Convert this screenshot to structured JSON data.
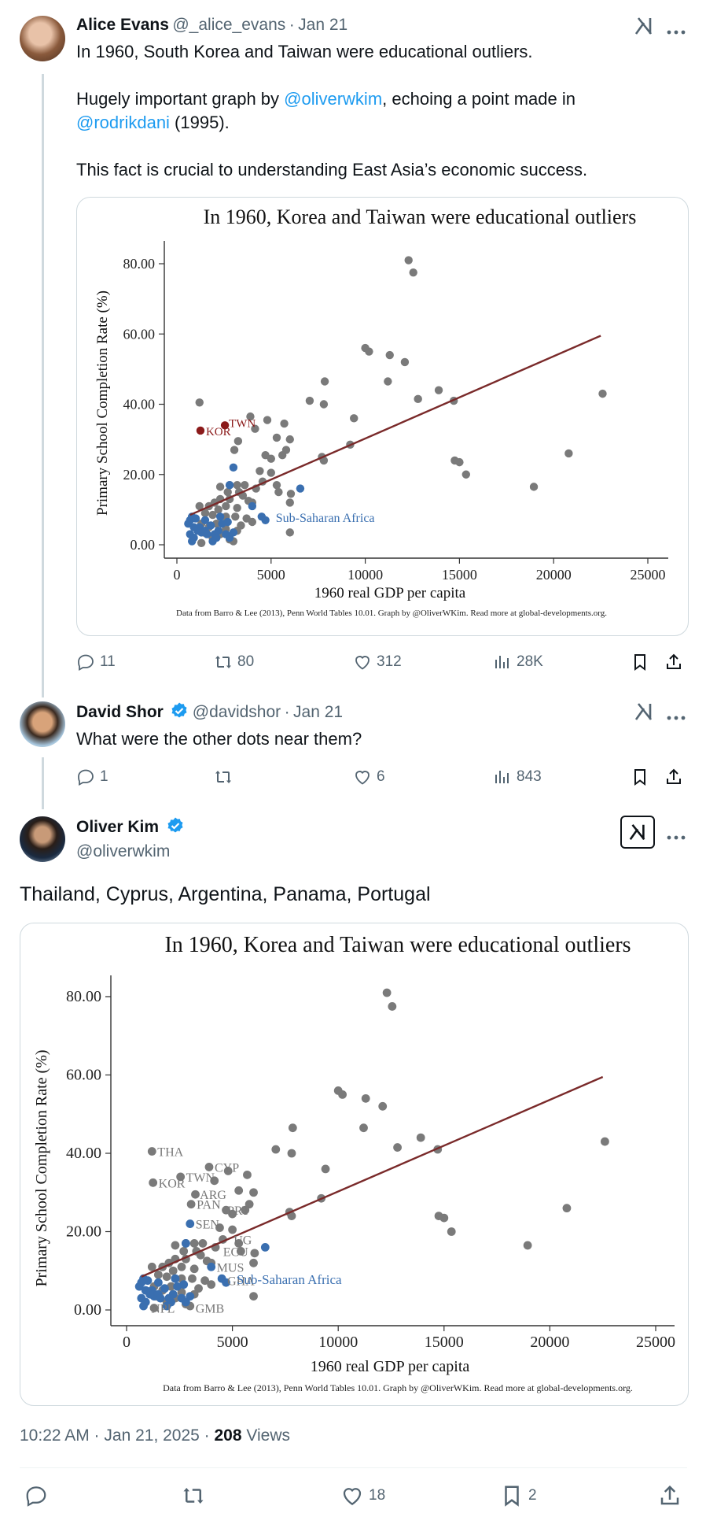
{
  "tweets": [
    {
      "author_name": "Alice Evans",
      "handle": "@_alice_evans",
      "date": "Jan 21",
      "text_line1": "In 1960, South Korea and Taiwan were educational outliers.",
      "text_line2_pre": "Hugely important graph by ",
      "mention1": "@oliverwkim",
      "text_line2_post": ", echoing a point made in",
      "mention2": "@rodrikdani",
      "text_line3_post": " (1995).",
      "text_line4": "This fact is crucial to understanding East Asia’s economic success.",
      "replies": "11",
      "reposts": "80",
      "likes": "312",
      "views": "28K"
    },
    {
      "author_name": "David Shor",
      "handle": "@davidshor",
      "date": "Jan 21",
      "text": "What were the other dots near them?",
      "replies": "1",
      "reposts": "",
      "likes": "6",
      "views": "843"
    }
  ],
  "main_tweet": {
    "author_name": "Oliver Kim",
    "handle": "@oliverwkim",
    "text": "Thailand, Cyprus, Argentina, Panama, Portugal",
    "time": "10:22 AM · Jan 21, 2025 · ",
    "views_count": "208",
    "views_label": " Views",
    "replies": "",
    "reposts": "",
    "likes": "18",
    "bookmarks": "2"
  },
  "colors": {
    "gray_dot": "#7a7a7a",
    "africa_dot": "#3a6fb0",
    "highlight_dot": "#8b1a1a",
    "fit_line": "#7a2a2a",
    "link": "#1d9bf0"
  },
  "chart_data": [
    {
      "type": "scatter",
      "title": "In 1960, Korea and Taiwan were educational outliers",
      "xlabel": "1960 real GDP per capita",
      "ylabel": "Primary School Completion Rate (%)",
      "xlim": [
        0,
        25000
      ],
      "ylim": [
        0,
        80
      ],
      "x_ticks": [
        "0",
        "5000",
        "10000",
        "15000",
        "20000",
        "25000"
      ],
      "y_ticks": [
        "0.00",
        "20.00",
        "40.00",
        "60.00",
        "80.00"
      ],
      "annotation": "Sub-Saharan Africa",
      "source_note": "Data from Barro & Lee (2013), Penn World Tables 10.01. Graph by @OliverWKim. Read more at global-developments.org.",
      "fit_line": {
        "x": [
          700,
          22500
        ],
        "y": [
          8.5,
          59.5
        ]
      },
      "highlight_points": [
        {
          "label": "KOR",
          "x": 1250,
          "y": 32.5
        },
        {
          "label": "TWN",
          "x": 2550,
          "y": 34
        }
      ],
      "series": [
        {
          "group": "other",
          "points": [
            [
              1200,
              40.5
            ],
            [
              3250,
              29.5
            ],
            [
              3050,
              27
            ],
            [
              3900,
              36.5
            ],
            [
              4150,
              33
            ],
            [
              4800,
              35.5
            ],
            [
              5300,
              30.5
            ],
            [
              5700,
              34.5
            ],
            [
              7050,
              41
            ],
            [
              7850,
              46.5
            ],
            [
              7800,
              40
            ],
            [
              10000,
              56
            ],
            [
              10200,
              55
            ],
            [
              11300,
              54
            ],
            [
              12100,
              52
            ],
            [
              11200,
              46.5
            ],
            [
              12300,
              81
            ],
            [
              12550,
              77.5
            ],
            [
              12800,
              41.5
            ],
            [
              13900,
              44
            ],
            [
              14700,
              41
            ],
            [
              14750,
              24
            ],
            [
              15000,
              23.5
            ],
            [
              15350,
              20
            ],
            [
              18950,
              16.5
            ],
            [
              20800,
              26
            ],
            [
              22600,
              43
            ],
            [
              9400,
              36
            ],
            [
              9200,
              28.5
            ],
            [
              7700,
              25
            ],
            [
              7800,
              24
            ],
            [
              5800,
              27
            ],
            [
              6000,
              30
            ],
            [
              5000,
              24.5
            ],
            [
              4700,
              25.5
            ],
            [
              4400,
              21
            ],
            [
              4550,
              18
            ],
            [
              5000,
              20.5
            ],
            [
              5600,
              25.5
            ],
            [
              4200,
              16
            ],
            [
              5300,
              17
            ],
            [
              5400,
              15
            ],
            [
              6050,
              14.5
            ],
            [
              6000,
              12
            ],
            [
              6000,
              3.5
            ],
            [
              3600,
              17
            ],
            [
              3200,
              17
            ],
            [
              2800,
              17
            ],
            [
              2700,
              15
            ],
            [
              2300,
              16.5
            ],
            [
              3300,
              15
            ],
            [
              3500,
              14
            ],
            [
              2300,
              13
            ],
            [
              2800,
              13
            ],
            [
              2000,
              12
            ],
            [
              3800,
              12.5
            ],
            [
              4000,
              12
            ],
            [
              1200,
              11
            ],
            [
              1700,
              11
            ],
            [
              2600,
              11
            ],
            [
              3200,
              10.5
            ],
            [
              2200,
              10
            ],
            [
              1500,
              9
            ],
            [
              1900,
              8.5
            ],
            [
              2600,
              8
            ],
            [
              3100,
              8
            ],
            [
              3700,
              7.5
            ],
            [
              4000,
              6.5
            ],
            [
              1300,
              6
            ],
            [
              2100,
              6
            ],
            [
              3400,
              5.5
            ],
            [
              1700,
              5
            ],
            [
              2600,
              4.5
            ],
            [
              3200,
              4
            ],
            [
              1400,
              3.5
            ],
            [
              2300,
              3
            ],
            [
              1900,
              2
            ],
            [
              2800,
              1.5
            ],
            [
              3000,
              1
            ],
            [
              1300,
              0.5
            ]
          ]
        },
        {
          "group": "Sub-Saharan Africa",
          "points": [
            [
              3000,
              22
            ],
            [
              2800,
              17
            ],
            [
              6550,
              16
            ],
            [
              4000,
              11
            ],
            [
              4500,
              8
            ],
            [
              4700,
              7
            ],
            [
              600,
              6
            ],
            [
              700,
              7
            ],
            [
              800,
              8
            ],
            [
              1000,
              7.5
            ],
            [
              1200,
              5
            ],
            [
              1300,
              3.5
            ],
            [
              1500,
              4
            ],
            [
              1600,
              3
            ],
            [
              1800,
              5.5
            ],
            [
              2000,
              3
            ],
            [
              2100,
              2
            ],
            [
              2200,
              4
            ],
            [
              2400,
              6
            ],
            [
              2600,
              3
            ],
            [
              2800,
              2
            ],
            [
              3000,
              3.5
            ],
            [
              700,
              3
            ],
            [
              900,
              2
            ],
            [
              1100,
              4
            ],
            [
              800,
              1
            ],
            [
              1900,
              1
            ],
            [
              1500,
              7
            ],
            [
              2300,
              8
            ],
            [
              2700,
              6.5
            ],
            [
              900,
              5
            ]
          ]
        }
      ]
    },
    {
      "type": "scatter",
      "title": "In 1960, Korea and Taiwan were educational outliers",
      "xlabel": "1960 real GDP per capita",
      "ylabel": "Primary School Completion Rate (%)",
      "xlim": [
        0,
        25000
      ],
      "ylim": [
        0,
        80
      ],
      "x_ticks": [
        "0",
        "5000",
        "10000",
        "15000",
        "20000",
        "25000"
      ],
      "y_ticks": [
        "0.00",
        "20.00",
        "40.00",
        "60.00",
        "80.00"
      ],
      "annotation": "Sub-Saharan Africa",
      "source_note": "Data from Barro & Lee (2013), Penn World Tables 10.01. Graph by @OliverWKim. Read more at global-developments.org.",
      "fit_line": {
        "x": [
          700,
          22500
        ],
        "y": [
          8.5,
          59.5
        ]
      },
      "point_labels": [
        {
          "label": "THA",
          "x": 1200,
          "y": 40.5
        },
        {
          "label": "CYP",
          "x": 3900,
          "y": 36.5
        },
        {
          "label": "KOR",
          "x": 1250,
          "y": 32.5
        },
        {
          "label": "TWN",
          "x": 2550,
          "y": 34
        },
        {
          "label": "ARG",
          "x": 3200,
          "y": 29.5
        },
        {
          "label": "PAN",
          "x": 3050,
          "y": 27
        },
        {
          "label": "PRT",
          "x": 4500,
          "y": 25.5
        },
        {
          "label": "SEN",
          "x": 3000,
          "y": 22
        },
        {
          "label": "UG",
          "x": 4800,
          "y": 18
        },
        {
          "label": "ECU",
          "x": 4300,
          "y": 15
        },
        {
          "label": "MUS",
          "x": 4000,
          "y": 11
        },
        {
          "label": "GHA",
          "x": 4500,
          "y": 7.5
        },
        {
          "label": "NPL",
          "x": 900,
          "y": 0.5
        },
        {
          "label": "GMB",
          "x": 3000,
          "y": 0.5
        }
      ],
      "series": [
        {
          "group": "other",
          "points": [
            [
              1200,
              40.5
            ],
            [
              3250,
              29.5
            ],
            [
              3050,
              27
            ],
            [
              3900,
              36.5
            ],
            [
              4150,
              33
            ],
            [
              4800,
              35.5
            ],
            [
              5300,
              30.5
            ],
            [
              5700,
              34.5
            ],
            [
              7050,
              41
            ],
            [
              7850,
              46.5
            ],
            [
              7800,
              40
            ],
            [
              10000,
              56
            ],
            [
              10200,
              55
            ],
            [
              11300,
              54
            ],
            [
              12100,
              52
            ],
            [
              11200,
              46.5
            ],
            [
              12300,
              81
            ],
            [
              12550,
              77.5
            ],
            [
              12800,
              41.5
            ],
            [
              13900,
              44
            ],
            [
              14700,
              41
            ],
            [
              14750,
              24
            ],
            [
              15000,
              23.5
            ],
            [
              15350,
              20
            ],
            [
              18950,
              16.5
            ],
            [
              20800,
              26
            ],
            [
              22600,
              43
            ],
            [
              9400,
              36
            ],
            [
              9200,
              28.5
            ],
            [
              7700,
              25
            ],
            [
              7800,
              24
            ],
            [
              5800,
              27
            ],
            [
              6000,
              30
            ],
            [
              5000,
              24.5
            ],
            [
              4700,
              25.5
            ],
            [
              4400,
              21
            ],
            [
              4550,
              18
            ],
            [
              5000,
              20.5
            ],
            [
              5600,
              25.5
            ],
            [
              4200,
              16
            ],
            [
              5300,
              17
            ],
            [
              5400,
              15
            ],
            [
              6050,
              14.5
            ],
            [
              6000,
              12
            ],
            [
              6000,
              3.5
            ],
            [
              3600,
              17
            ],
            [
              3200,
              17
            ],
            [
              2800,
              17
            ],
            [
              2700,
              15
            ],
            [
              2300,
              16.5
            ],
            [
              3300,
              15
            ],
            [
              3500,
              14
            ],
            [
              2300,
              13
            ],
            [
              2800,
              13
            ],
            [
              2000,
              12
            ],
            [
              3800,
              12.5
            ],
            [
              4000,
              12
            ],
            [
              1200,
              11
            ],
            [
              1700,
              11
            ],
            [
              2600,
              11
            ],
            [
              3200,
              10.5
            ],
            [
              2200,
              10
            ],
            [
              1500,
              9
            ],
            [
              1900,
              8.5
            ],
            [
              2600,
              8
            ],
            [
              3100,
              8
            ],
            [
              3700,
              7.5
            ],
            [
              4000,
              6.5
            ],
            [
              1300,
              6
            ],
            [
              2100,
              6
            ],
            [
              3400,
              5.5
            ],
            [
              1700,
              5
            ],
            [
              2600,
              4.5
            ],
            [
              3200,
              4
            ],
            [
              1400,
              3.5
            ],
            [
              2300,
              3
            ],
            [
              1900,
              2
            ],
            [
              2800,
              1.5
            ],
            [
              3000,
              1
            ],
            [
              1300,
              0.5
            ],
            [
              1250,
              32.5
            ],
            [
              2550,
              34
            ]
          ]
        },
        {
          "group": "Sub-Saharan Africa",
          "points": [
            [
              3000,
              22
            ],
            [
              2800,
              17
            ],
            [
              6550,
              16
            ],
            [
              4000,
              11
            ],
            [
              4500,
              8
            ],
            [
              4700,
              7
            ],
            [
              600,
              6
            ],
            [
              700,
              7
            ],
            [
              800,
              8
            ],
            [
              1000,
              7.5
            ],
            [
              1200,
              5
            ],
            [
              1300,
              3.5
            ],
            [
              1500,
              4
            ],
            [
              1600,
              3
            ],
            [
              1800,
              5.5
            ],
            [
              2000,
              3
            ],
            [
              2100,
              2
            ],
            [
              2200,
              4
            ],
            [
              2400,
              6
            ],
            [
              2600,
              3
            ],
            [
              2800,
              2
            ],
            [
              3000,
              3.5
            ],
            [
              700,
              3
            ],
            [
              900,
              2
            ],
            [
              1100,
              4
            ],
            [
              800,
              1
            ],
            [
              1900,
              1
            ],
            [
              1500,
              7
            ],
            [
              2300,
              8
            ],
            [
              2700,
              6.5
            ],
            [
              900,
              5
            ]
          ]
        }
      ]
    }
  ]
}
